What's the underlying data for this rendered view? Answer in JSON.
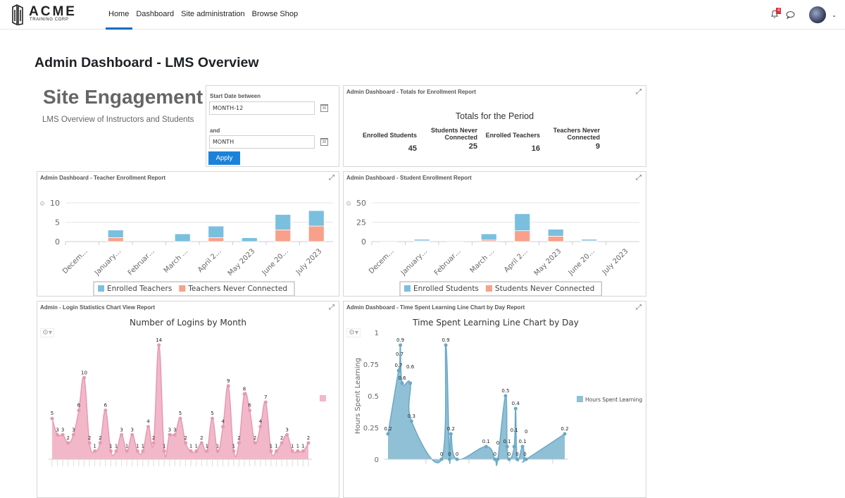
{
  "nav": {
    "logo_text": "ACME",
    "logo_sub": "TRAINING CORP",
    "links": [
      "Home",
      "Dashboard",
      "Site administration",
      "Browse Shop"
    ],
    "active": "Home",
    "notification_count": "4"
  },
  "page_title": "Admin Dashboard - LMS Overview",
  "engagement": {
    "title": "Site Engagement",
    "subtitle": "LMS Overview of Instructors and Students"
  },
  "filter": {
    "start_label": "Start Date between",
    "start_value": "MONTH-12",
    "and_label": "and",
    "end_value": "MONTH",
    "calendar_text": "30",
    "apply": "Apply"
  },
  "totals": {
    "panel_title": "Admin Dashboard - Totals for Enrollment Report",
    "heading": "Totals for the Period",
    "columns": [
      {
        "label": "Enrolled Students",
        "value": "45"
      },
      {
        "label": "Students Never Connected",
        "value": "25"
      },
      {
        "label": "Enrolled Teachers",
        "value": "16"
      },
      {
        "label": "Teachers Never Connected",
        "value": "9"
      }
    ]
  },
  "colors": {
    "enrolled": "#7bbfdf",
    "never": "#f8a08a",
    "logins": "#f2b8c9",
    "logins_line": "#e59ab2",
    "time": "#8fc0d6",
    "time_line": "#6aa8c6"
  },
  "chart_data": [
    {
      "panel_title": "Admin Dashboard - Teacher Enrollment Report",
      "type": "bar",
      "stacked": true,
      "categories": [
        "Decem…",
        "January…",
        "Februar…",
        "March …",
        "April 2…",
        "May 2023",
        "June 20…",
        "July 2023"
      ],
      "series": [
        {
          "name": "Enrolled Teachers",
          "values": [
            0,
            2,
            0,
            2,
            3,
            1,
            4,
            4
          ]
        },
        {
          "name": "Teachers Never Connected",
          "values": [
            0,
            1,
            0,
            0,
            1,
            0,
            3,
            4
          ]
        }
      ],
      "ylim": [
        0,
        10
      ],
      "yticks": [
        "0",
        "5",
        "10"
      ],
      "legend": "bottom"
    },
    {
      "panel_title": "Admin Dashboard - Student Enrollment Report",
      "type": "bar",
      "stacked": true,
      "categories": [
        "Decem…",
        "January…",
        "Februar…",
        "March …",
        "April 2…",
        "May 2023",
        "June 20…",
        "July 2023"
      ],
      "series": [
        {
          "name": "Enrolled Students",
          "values": [
            1,
            2,
            1,
            8,
            22,
            9,
            2,
            0
          ]
        },
        {
          "name": "Students Never Connected",
          "values": [
            0,
            1,
            0,
            2,
            14,
            7,
            1,
            0
          ]
        }
      ],
      "ylim": [
        0,
        50
      ],
      "yticks": [
        "0",
        "25",
        "50"
      ],
      "legend": "bottom"
    },
    {
      "panel_title": "Admin - Login Statistics Chart View Report",
      "title": "Number of Logins by Month",
      "type": "area",
      "values": [
        5,
        3,
        3,
        2,
        3,
        6,
        10,
        2,
        1,
        2,
        6,
        1,
        1,
        3,
        1,
        3,
        1,
        1,
        4,
        2,
        14,
        1,
        3,
        3,
        5,
        2,
        1,
        1,
        2,
        1,
        5,
        1,
        4,
        9,
        1,
        2,
        8,
        6,
        2,
        4,
        7,
        1,
        1,
        2,
        3,
        1,
        1,
        1,
        2
      ],
      "ylim": [
        0,
        14
      ],
      "legend": "right"
    },
    {
      "panel_title": "Admin Dashboard - Time Spent Learning Line Chart by Day Report",
      "title": "Time Spent Learning Line Chart by Day",
      "type": "area",
      "ylabel": "Hours Spent Learning",
      "yticks": [
        "0",
        "0.25",
        "0.5",
        "0.75",
        "1"
      ],
      "ylim": [
        0,
        1
      ],
      "legend": "right",
      "series": [
        {
          "name": "Hours Spent Learning",
          "x": [
            0,
            6,
            6.6,
            7,
            8,
            12.6,
            13.3,
            30.3,
            32.7,
            34.8,
            35.6,
            39.1,
            55.5,
            60.5,
            62.1,
            66.5,
            67.4,
            68.5,
            71.4,
            72.2,
            73.1,
            76.1,
            77.5,
            78.2,
            100
          ],
          "y": [
            0.2,
            0.7,
            0.7,
            0.9,
            0.6,
            0.6,
            0.3,
            0,
            0.9,
            0,
            0.2,
            0,
            0.1,
            0,
            0,
            0.5,
            0.1,
            0,
            0.1,
            0.4,
            0,
            0.1,
            0,
            0,
            0.2
          ]
        }
      ]
    }
  ]
}
